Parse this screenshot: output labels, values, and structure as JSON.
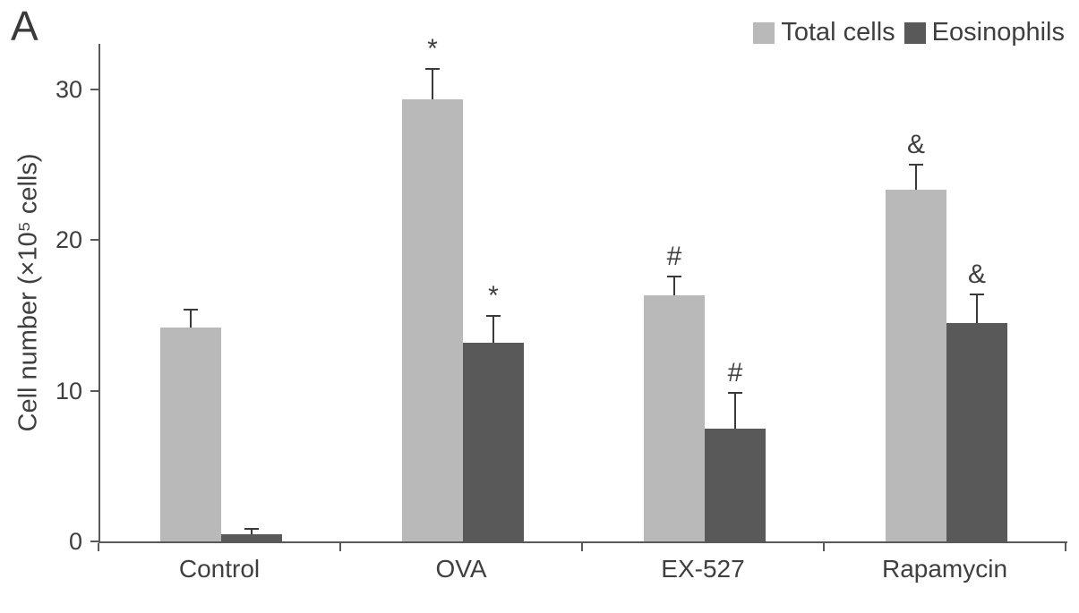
{
  "panel_label": "A",
  "chart_data": {
    "type": "bar",
    "title": "",
    "xlabel": "",
    "ylabel": "Cell number (×10⁵ cells)",
    "ylim": [
      0,
      33
    ],
    "yticks": [
      0,
      10,
      20,
      30
    ],
    "grid": false,
    "legend_position": "top-right",
    "categories": [
      "Control",
      "OVA",
      "EX-527",
      "Rapamycin"
    ],
    "series": [
      {
        "name": "Total cells",
        "color": "#b9b9b9",
        "values": [
          14.2,
          29.3,
          16.3,
          23.3
        ],
        "errors": [
          1.1,
          2.0,
          1.2,
          1.6
        ],
        "annotations": [
          "",
          "*",
          "#",
          "&"
        ]
      },
      {
        "name": "Eosinophils",
        "color": "#595959",
        "values": [
          0.5,
          13.2,
          7.5,
          14.5
        ],
        "errors": [
          0.3,
          1.7,
          2.3,
          1.8
        ],
        "annotations": [
          "",
          "*",
          "#",
          "&"
        ]
      }
    ]
  }
}
